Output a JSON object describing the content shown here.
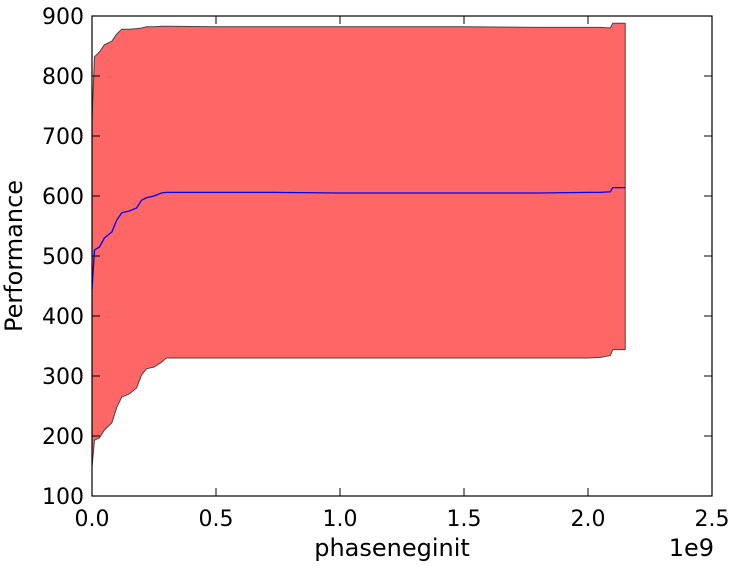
{
  "chart_data": {
    "type": "area",
    "title": "",
    "xlabel": "phaseneginit",
    "ylabel": "Performance",
    "x_offset_label": "1e9",
    "xlim": [
      0.0,
      2.5
    ],
    "ylim": [
      100,
      900
    ],
    "x_ticks": [
      "0.0",
      "0.5",
      "1.0",
      "1.5",
      "2.0",
      "2.5"
    ],
    "y_ticks": [
      "100",
      "200",
      "300",
      "400",
      "500",
      "600",
      "700",
      "800",
      "900"
    ],
    "grid": false,
    "legend": "none",
    "x": [
      0.0,
      0.01,
      0.03,
      0.05,
      0.08,
      0.1,
      0.12,
      0.15,
      0.18,
      0.2,
      0.22,
      0.25,
      0.28,
      0.3,
      0.5,
      0.73,
      1.0,
      1.5,
      1.8,
      2.0,
      2.05,
      2.09,
      2.1,
      2.15
    ],
    "series": [
      {
        "values": [
          445,
          510,
          515,
          530,
          540,
          560,
          572,
          575,
          580,
          593,
          597,
          600,
          605,
          606,
          606,
          606,
          605,
          605,
          605,
          606,
          606,
          607,
          614,
          614
        ],
        "upper": [
          725,
          832,
          840,
          852,
          858,
          870,
          878,
          878,
          879,
          880,
          882,
          882,
          883,
          883,
          882,
          882,
          882,
          882,
          881,
          881,
          881,
          880,
          888,
          888
        ],
        "lower": [
          148,
          193,
          197,
          210,
          222,
          248,
          265,
          270,
          280,
          302,
          312,
          315,
          323,
          330,
          330,
          330,
          330,
          330,
          330,
          330,
          331,
          334,
          344,
          344
        ]
      }
    ],
    "colors": {
      "mean_line": "#0000ff",
      "band_fill": "#ff6666",
      "band_edge": "#444444"
    }
  }
}
